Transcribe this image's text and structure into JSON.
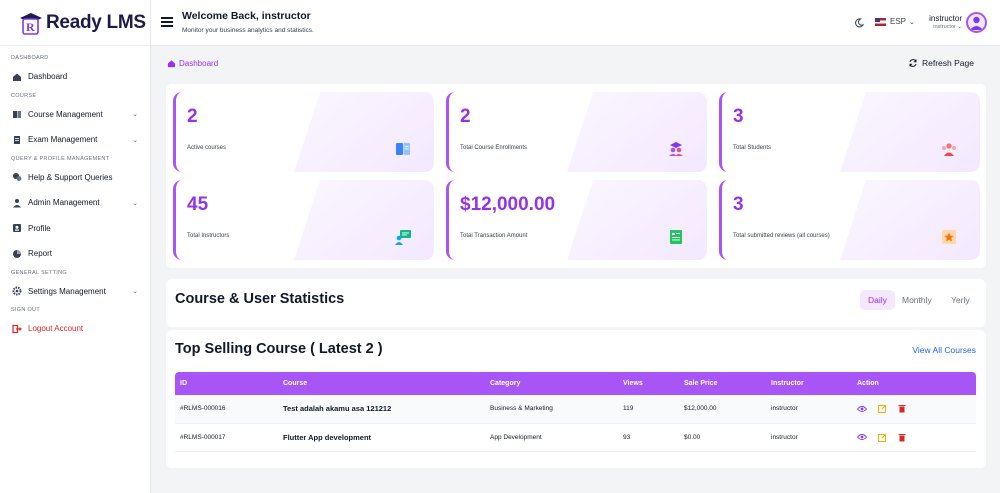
{
  "app": {
    "logo_letter": "R",
    "name": "Ready LMS"
  },
  "sidebar": {
    "sections": {
      "dashboard": "DASHBOARD",
      "course": "COURSE",
      "query": "QUERY & PROFILE MANAGEMENT",
      "general": "GENERAL SETTING",
      "signout": "SIGN OUT"
    },
    "items": {
      "dashboard": "Dashboard",
      "course_management": "Course Management",
      "exam_management": "Exam Management",
      "help_support": "Help & Support Queries",
      "admin_management": "Admin Management",
      "profile": "Profile",
      "report": "Report",
      "settings_management": "Settings Management",
      "logout": "Logout Account"
    }
  },
  "header": {
    "welcome": "Welcome Back, instructor",
    "subtitle": "Monitor your business analytics and statistics.",
    "language": "ESP",
    "user_name": "instructor",
    "user_role": "instructor"
  },
  "breadcrumb": "Dashboard",
  "refresh_label": "Refresh Page",
  "stats": [
    {
      "value": "2",
      "label": "Active courses",
      "icon": "book-icon"
    },
    {
      "value": "2",
      "label": "Total Course Enrollments",
      "icon": "graduates-icon"
    },
    {
      "value": "3",
      "label": "Total Students",
      "icon": "students-group-icon"
    },
    {
      "value": "45",
      "label": "Total Instructors",
      "icon": "instructor-board-icon"
    },
    {
      "value": "$12,000.00",
      "label": "Total Transaction Amount",
      "icon": "receipt-icon"
    },
    {
      "value": "3",
      "label": "Total submitted reviews (all courses)",
      "icon": "review-star-icon"
    }
  ],
  "course_stats": {
    "title": "Course & User Statistics",
    "periods": [
      "Daily",
      "Monthly",
      "Yerly"
    ],
    "active_period": "Daily"
  },
  "top_selling": {
    "title": "Top Selling Course ( Latest 2 )",
    "view_all": "View All Courses",
    "columns": [
      "ID",
      "Course",
      "Category",
      "Views",
      "Sale Price",
      "Instructor",
      "Action"
    ],
    "rows": [
      {
        "id": "#RLMS-000016",
        "course": "Test adalah akamu asa 121212",
        "category": "Business & Marketing",
        "views": "119",
        "price": "$12,000.00",
        "instructor": "instructor"
      },
      {
        "id": "#RLMS-000017",
        "course": "Flutter App development",
        "category": "App Development",
        "views": "93",
        "price": "$0.00",
        "instructor": "instructor"
      }
    ]
  },
  "colors": {
    "accent": "#a855f7",
    "accent_text": "#9333ea",
    "danger": "#dc2626",
    "link": "#2563eb"
  }
}
